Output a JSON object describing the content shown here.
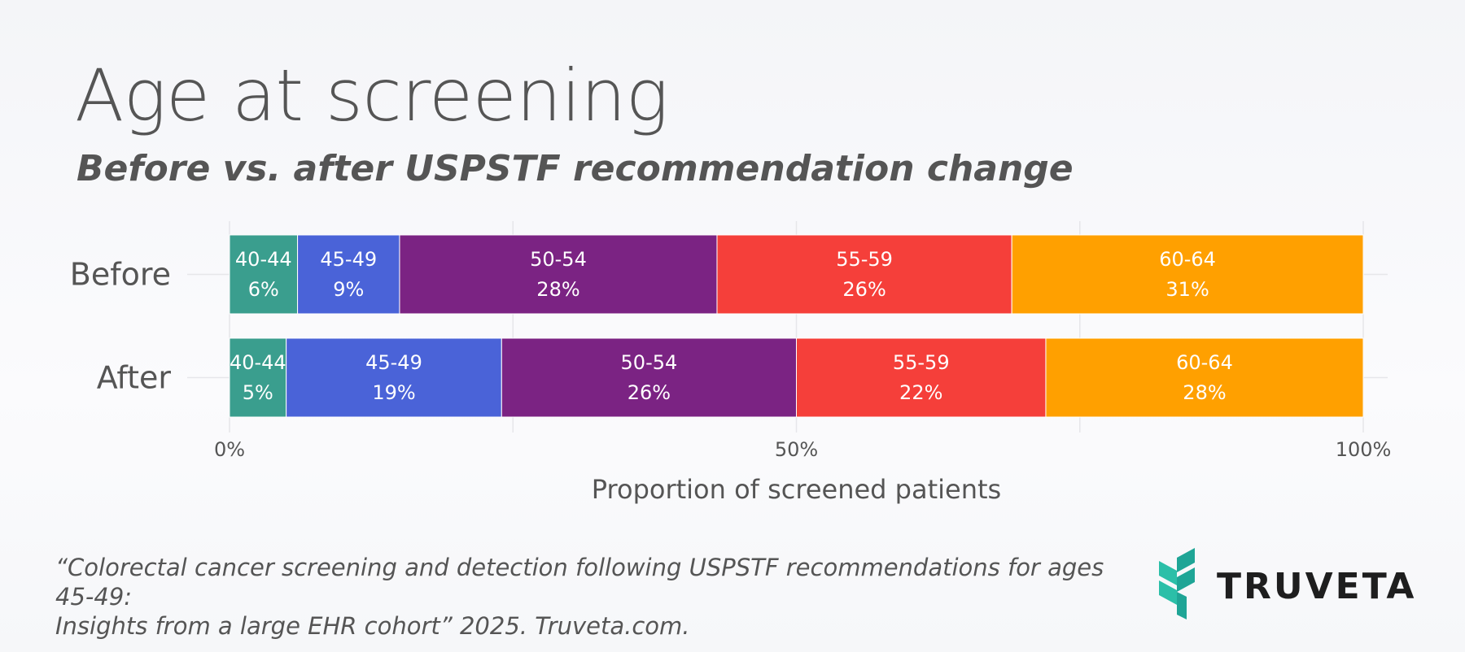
{
  "header": {
    "title": "Age at screening",
    "subtitle": "Before vs. after USPSTF recommendation change"
  },
  "chart_data": {
    "type": "bar",
    "orientation": "horizontal",
    "stacked": true,
    "categories": [
      "Before",
      "After"
    ],
    "series": [
      {
        "name": "40-44",
        "values": [
          6,
          5
        ],
        "labels": [
          "6%",
          "5%"
        ],
        "color": "#3a9e8e"
      },
      {
        "name": "45-49",
        "values": [
          9,
          19
        ],
        "labels": [
          "9%",
          "19%"
        ],
        "color": "#4a63d8"
      },
      {
        "name": "50-54",
        "values": [
          28,
          26
        ],
        "labels": [
          "28%",
          "26%"
        ],
        "color": "#7b2383"
      },
      {
        "name": "55-59",
        "values": [
          26,
          22
        ],
        "labels": [
          "26%",
          "22%"
        ],
        "color": "#f53f3a"
      },
      {
        "name": "60-64",
        "values": [
          31,
          28
        ],
        "labels": [
          "31%",
          "28%"
        ],
        "color": "#ffa000"
      }
    ],
    "xlabel": "Proportion of screened patients",
    "ylabel": "",
    "xlim": [
      0,
      100
    ],
    "xticks": [
      "0%",
      "50%",
      "100%"
    ],
    "xtick_values": [
      0,
      50,
      100
    ],
    "grid": true
  },
  "footer": {
    "citation_line1": "“Colorectal cancer screening and detection following USPSTF recommendations for ages 45-49:",
    "citation_line2": "Insights from a large EHR cohort” 2025. Truveta.com.",
    "logo_text": "TRUVETA",
    "logo_colors": [
      "#2bbfa8",
      "#1fa596"
    ]
  }
}
